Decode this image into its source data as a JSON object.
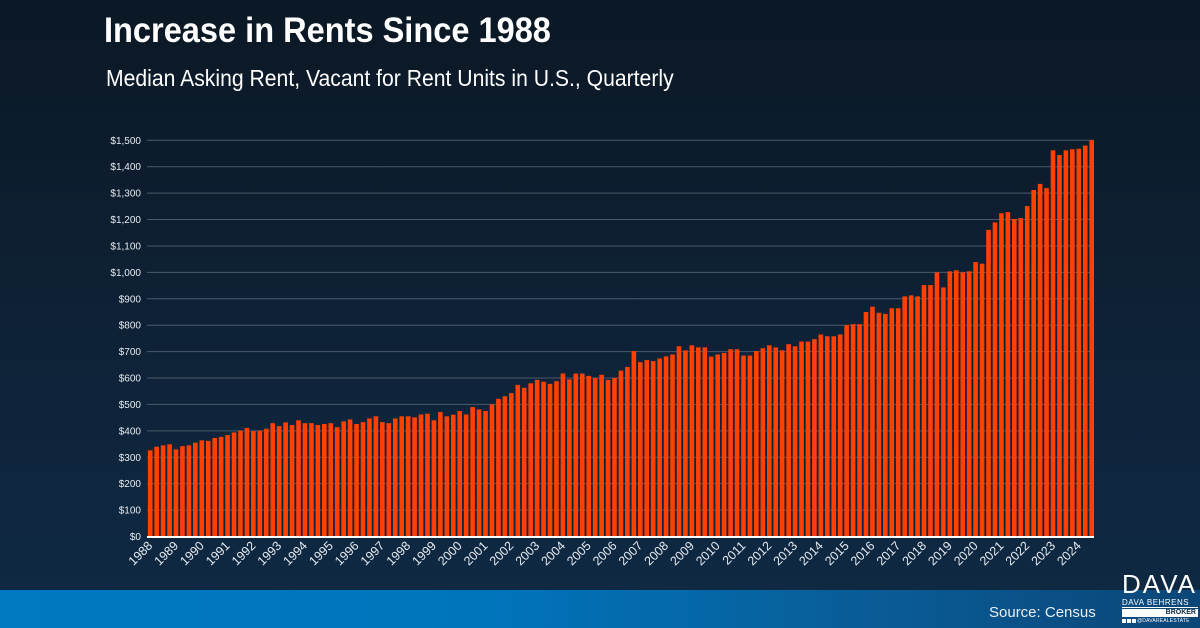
{
  "header": {
    "title": "Increase in Rents Since 1988",
    "subtitle": "Median Asking Rent, Vacant for Rent Units in U.S., Quarterly"
  },
  "footer": {
    "source": "Source: Census",
    "logo": {
      "main": "DAVA",
      "name": "DAVA BEHRENS",
      "role": "BROKER",
      "social_handle": "@DAVAREALESTATE",
      "social_icons": [
        "facebook-icon",
        "instagram-icon",
        "linkedin-icon"
      ]
    }
  },
  "colors": {
    "bar": "#ff4000",
    "gridline": "#4a5a68",
    "axis": "#ffffff",
    "footer_band": "#0079c2"
  },
  "chart_data": {
    "type": "bar",
    "title": "Increase in Rents Since 1988",
    "subtitle": "Median Asking Rent, Vacant for Rent Units in U.S., Quarterly",
    "xlabel": "",
    "ylabel": "",
    "ylim": [
      0,
      1500
    ],
    "grid": true,
    "legend": "none",
    "y_ticks": [
      0,
      100,
      200,
      300,
      400,
      500,
      600,
      700,
      800,
      900,
      1000,
      1100,
      1200,
      1300,
      1400,
      1500
    ],
    "y_tick_labels": [
      "$0",
      "$100",
      "$200",
      "$300",
      "$400",
      "$500",
      "$600",
      "$700",
      "$800",
      "$900",
      "$1,000",
      "$1,100",
      "$1,200",
      "$1,300",
      "$1,400",
      "$1,500"
    ],
    "x_tick_labels": [
      "1988",
      "1989",
      "1990",
      "1991",
      "1992",
      "1993",
      "1994",
      "1995",
      "1996",
      "1997",
      "1998",
      "1999",
      "2000",
      "2001",
      "2002",
      "2003",
      "2004",
      "2005",
      "2006",
      "2007",
      "2008",
      "2009",
      "2010",
      "2011",
      "2012",
      "2013",
      "2014",
      "2015",
      "2016",
      "2017",
      "2018",
      "2019",
      "2020",
      "2021",
      "2022",
      "2023",
      "2024"
    ],
    "start_year": 1988,
    "periods_per_label": 4,
    "series": [
      {
        "name": "Median Asking Rent",
        "values": [
          326,
          340,
          345,
          349,
          330,
          342,
          345,
          355,
          364,
          362,
          373,
          377,
          384,
          394,
          401,
          411,
          399,
          401,
          408,
          429,
          418,
          432,
          422,
          440,
          429,
          429,
          422,
          426,
          429,
          414,
          436,
          443,
          426,
          433,
          447,
          455,
          433,
          429,
          447,
          455,
          455,
          451,
          462,
          465,
          440,
          471,
          455,
          461,
          475,
          462,
          490,
          481,
          475,
          500,
          521,
          531,
          543,
          574,
          563,
          580,
          593,
          586,
          578,
          588,
          617,
          595,
          617,
          617,
          608,
          600,
          612,
          593,
          600,
          628,
          642,
          702,
          660,
          668,
          664,
          674,
          682,
          689,
          720,
          705,
          724,
          716,
          716,
          681,
          689,
          695,
          709,
          709,
          685,
          685,
          702,
          713,
          724,
          716,
          705,
          728,
          720,
          738,
          738,
          747,
          765,
          758,
          758,
          765,
          800,
          804,
          804,
          850,
          870,
          847,
          843,
          864,
          864,
          909,
          913,
          909,
          952,
          952,
          1000,
          943,
          1004,
          1008,
          1000,
          1004,
          1039,
          1033,
          1161,
          1189,
          1224,
          1228,
          1202,
          1206,
          1251,
          1312,
          1335,
          1319,
          1462,
          1444,
          1462,
          1466,
          1468,
          1480,
          1500
        ]
      }
    ]
  }
}
